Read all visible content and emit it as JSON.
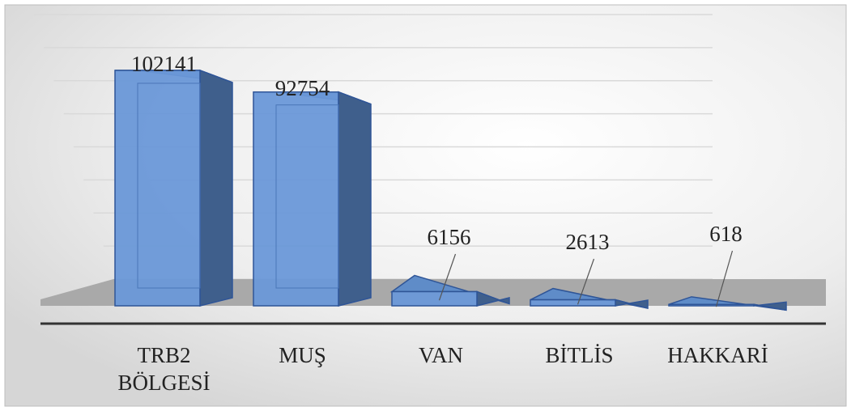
{
  "chart_data": {
    "type": "bar3d",
    "categories": [
      "TRB2 BÖLGESİ",
      "MUŞ",
      "VAN",
      "BİTLİS",
      "HAKKARİ"
    ],
    "values": [
      102141,
      92754,
      6156,
      2613,
      618
    ],
    "color": "#6a98d8",
    "ylim": [
      0,
      120000
    ],
    "yticks": [
      0,
      15000,
      30000,
      45000,
      60000,
      75000,
      90000,
      105000,
      120000
    ],
    "grid": true
  }
}
